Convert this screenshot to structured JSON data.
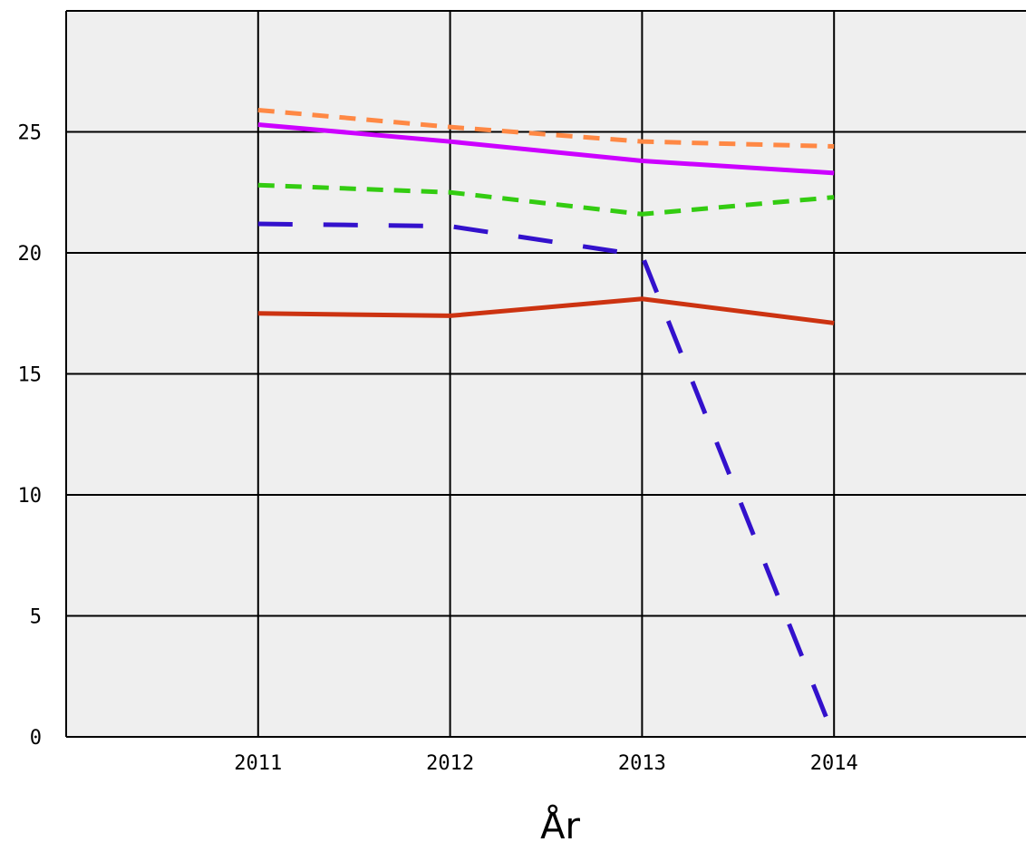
{
  "chart_data": {
    "type": "line",
    "xlabel": "År",
    "ylabel": "",
    "title": "",
    "categories": [
      "2011",
      "2012",
      "2013",
      "2014"
    ],
    "xlim": [
      2010,
      2015
    ],
    "ylim": [
      0,
      30
    ],
    "yticks": [
      0,
      5,
      10,
      15,
      20,
      25
    ],
    "grid": true,
    "background": "#efefef",
    "series": [
      {
        "color": "#ff8844",
        "dash": "short",
        "values": [
          25.9,
          25.2,
          24.6,
          24.4
        ]
      },
      {
        "color": "#cc00ff",
        "dash": "solid",
        "values": [
          25.3,
          24.6,
          23.8,
          23.3
        ]
      },
      {
        "color": "#33cc11",
        "dash": "short",
        "values": [
          22.8,
          22.5,
          21.6,
          22.3
        ]
      },
      {
        "color": "#3311cc",
        "dash": "long",
        "values": [
          21.2,
          21.1,
          19.9,
          0
        ]
      },
      {
        "color": "#cc3311",
        "dash": "solid",
        "values": [
          17.5,
          17.4,
          18.1,
          17.1
        ]
      }
    ]
  }
}
